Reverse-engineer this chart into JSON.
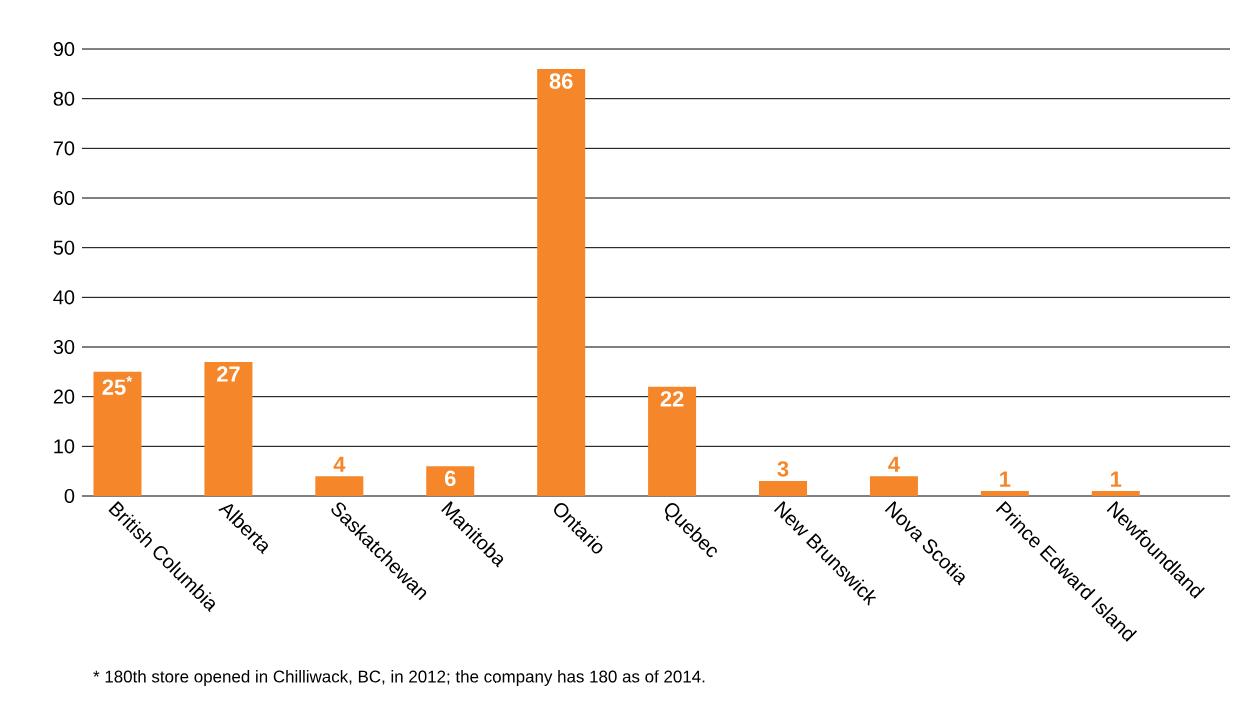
{
  "chart_data": {
    "type": "bar",
    "categories": [
      "British Columbia",
      "Alberta",
      "Saskatchewan",
      "Manitoba",
      "Ontario",
      "Quebec",
      "New Brunswick",
      "Nova Scotia",
      "Prince Edward Island",
      "Newfoundland"
    ],
    "values": [
      25,
      27,
      4,
      6,
      86,
      22,
      3,
      4,
      1,
      1
    ],
    "value_labels": [
      "25$^{*}$",
      "27",
      "4",
      "6",
      "86",
      "22",
      "3",
      "4",
      "1",
      "1"
    ],
    "color": "#f5862a",
    "ylim": [
      0,
      90
    ],
    "yticks": [
      0,
      10,
      20,
      30,
      40,
      50,
      60,
      70,
      80,
      90
    ],
    "grid": "y",
    "annotations": [
      "* 180th store opened in Chilliwack, BC, in 2012; the company has 180 as of 2014."
    ]
  }
}
